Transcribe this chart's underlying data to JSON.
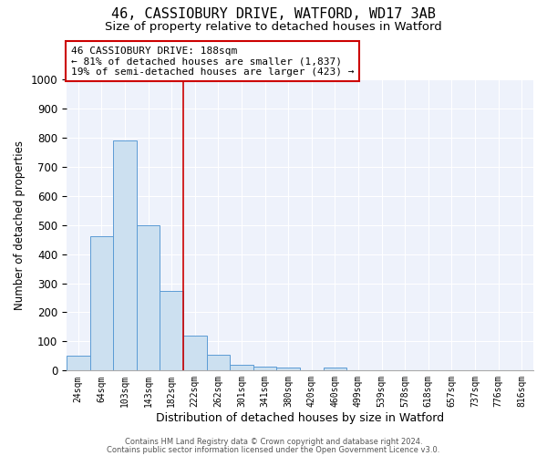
{
  "title1": "46, CASSIOBURY DRIVE, WATFORD, WD17 3AB",
  "title2": "Size of property relative to detached houses in Watford",
  "xlabel": "Distribution of detached houses by size in Watford",
  "ylabel": "Number of detached properties",
  "bar_labels": [
    "24sqm",
    "64sqm",
    "103sqm",
    "143sqm",
    "182sqm",
    "222sqm",
    "262sqm",
    "301sqm",
    "341sqm",
    "380sqm",
    "420sqm",
    "460sqm",
    "499sqm",
    "539sqm",
    "578sqm",
    "618sqm",
    "657sqm",
    "737sqm",
    "776sqm",
    "816sqm"
  ],
  "bar_values": [
    50,
    460,
    790,
    500,
    275,
    120,
    55,
    20,
    15,
    10,
    0,
    10,
    0,
    0,
    0,
    0,
    0,
    0,
    0,
    0
  ],
  "bar_color": "#cce0f0",
  "bar_edgecolor": "#5b9bd5",
  "ylim": [
    0,
    1000
  ],
  "yticks": [
    0,
    100,
    200,
    300,
    400,
    500,
    600,
    700,
    800,
    900,
    1000
  ],
  "red_line_x": 4.5,
  "annotation_text": "46 CASSIOBURY DRIVE: 188sqm\n← 81% of detached houses are smaller (1,837)\n19% of semi-detached houses are larger (423) →",
  "annotation_box_color": "#ffffff",
  "annotation_box_edgecolor": "#cc0000",
  "footer1": "Contains HM Land Registry data © Crown copyright and database right 2024.",
  "footer2": "Contains public sector information licensed under the Open Government Licence v3.0.",
  "background_color": "#eef2fb",
  "title1_fontsize": 11,
  "title2_fontsize": 9.5
}
